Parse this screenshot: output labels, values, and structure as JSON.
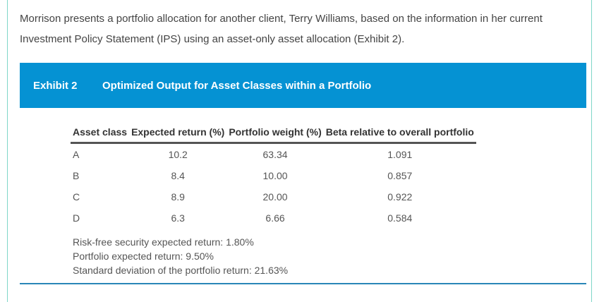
{
  "intro": "Morrison presents a portfolio allocation for another client, Terry Williams, based on the information in her current Investment Policy Statement (IPS) using an asset-only asset allocation (Exhibit 2).",
  "exhibit": {
    "number": "Exhibit 2",
    "title": "Optimized Output for Asset Classes within a Portfolio"
  },
  "table": {
    "headers": [
      "Asset class",
      "Expected return (%)",
      "Portfolio weight (%)",
      "Beta relative to overall portfolio"
    ],
    "rows": [
      [
        "A",
        "10.2",
        "63.34",
        "1.091"
      ],
      [
        "B",
        "8.4",
        "10.00",
        "0.857"
      ],
      [
        "C",
        "8.9",
        "20.00",
        "0.922"
      ],
      [
        "D",
        "6.3",
        "6.66",
        "0.584"
      ]
    ]
  },
  "notes": [
    "Risk-free security expected return: 1.80%",
    "Portfolio expected return: 9.50%",
    "Standard deviation of the portfolio return: 21.63%"
  ]
}
